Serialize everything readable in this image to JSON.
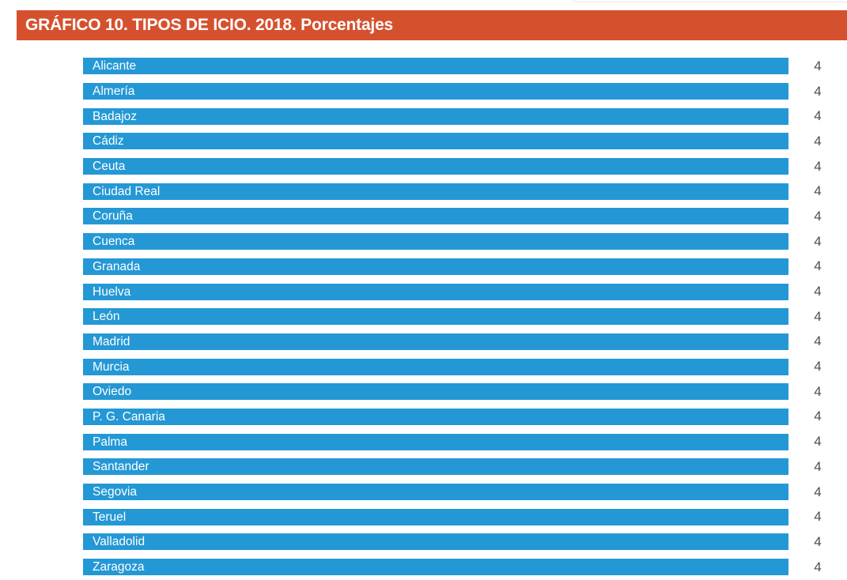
{
  "header": {
    "title": "GRÁFICO 10. TIPOS DE ICIO. 2018. Porcentajes"
  },
  "chart_data": {
    "type": "bar",
    "orientation": "horizontal",
    "title": "GRÁFICO 10. TIPOS DE ICIO. 2018. Porcentajes",
    "categories": [
      "Alicante",
      "Almería",
      "Badajoz",
      "Cádiz",
      "Ceuta",
      "Ciudad Real",
      "Coruña",
      "Cuenca",
      "Granada",
      "Huelva",
      "León",
      "Madrid",
      "Murcia",
      "Oviedo",
      "P. G. Canaria",
      "Palma",
      "Santander",
      "Segovia",
      "Teruel",
      "Valladolid",
      "Zaragoza"
    ],
    "values": [
      4,
      4,
      4,
      4,
      4,
      4,
      4,
      4,
      4,
      4,
      4,
      4,
      4,
      4,
      4,
      4,
      4,
      4,
      4,
      4,
      4
    ],
    "xlabel": "",
    "ylabel": "",
    "xlim": [
      0,
      4
    ],
    "value_labels_shown": true,
    "grid": false,
    "legend": false,
    "label_position": "inside-bar-left",
    "value_position": "right-of-bar",
    "colors": {
      "bar": "#2498d5",
      "header_bg": "#d5512e",
      "header_text": "#ffffff",
      "bar_label_text": "#ffffff",
      "value_text": "#4d4d4f"
    }
  }
}
